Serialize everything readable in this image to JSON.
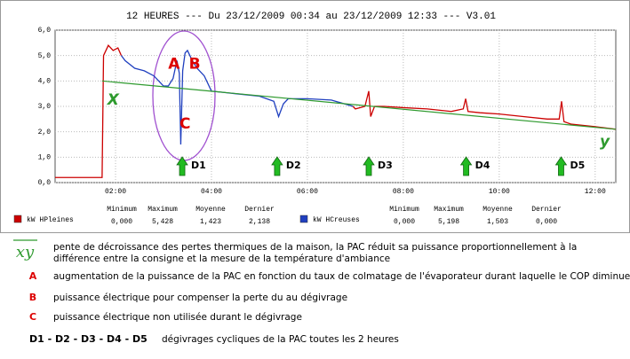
{
  "chart_data": {
    "type": "line",
    "title": "12 HEURES --- Du 23/12/2009 00:34 au 23/12/2009 12:33 --- V3.01",
    "xlim": [
      0.74,
      12.43
    ],
    "xticks": [
      {
        "value": 2,
        "label": "02:00"
      },
      {
        "value": 4,
        "label": "04:00"
      },
      {
        "value": 6,
        "label": "06:00"
      },
      {
        "value": 8,
        "label": "08:00"
      },
      {
        "value": 10,
        "label": "10:00"
      },
      {
        "value": 12,
        "label": "12:00"
      }
    ],
    "ylim": [
      0,
      6
    ],
    "yticks": [
      {
        "value": 0,
        "label": "0,0"
      },
      {
        "value": 1,
        "label": "1,0"
      },
      {
        "value": 2,
        "label": "2,0"
      },
      {
        "value": 3,
        "label": "3,0"
      },
      {
        "value": 4,
        "label": "4,0"
      },
      {
        "value": 5,
        "label": "5,0"
      },
      {
        "value": 6,
        "label": "6,0"
      }
    ],
    "grid": true,
    "stat_labels": [
      "Minimum",
      "Maximum",
      "Moyenne",
      "Dernier"
    ],
    "series": [
      {
        "name": "kW HPleines",
        "color": "#cc0000",
        "x": [
          0.74,
          1.2,
          1.72,
          1.75,
          1.85,
          1.95,
          2.05,
          2.12,
          4.5,
          6.95,
          7.0,
          7.2,
          7.28,
          7.32,
          7.4,
          7.6,
          8.0,
          8.5,
          9.0,
          9.25,
          9.3,
          9.35,
          9.6,
          10.0,
          10.5,
          11.0,
          11.25,
          11.3,
          11.35,
          11.5,
          12.0,
          12.43
        ],
        "values": [
          0.2,
          0.2,
          0.2,
          5.0,
          5.4,
          5.2,
          5.3,
          5.0,
          null,
          3.0,
          2.9,
          3.0,
          3.6,
          2.6,
          3.0,
          3.0,
          2.95,
          2.9,
          2.8,
          2.9,
          3.3,
          2.8,
          2.75,
          2.7,
          2.6,
          2.5,
          2.5,
          3.2,
          2.4,
          2.3,
          2.2,
          2.1
        ],
        "stats": [
          "0,000",
          "5,428",
          "1,423",
          "2,138"
        ]
      },
      {
        "name": "kW HCreuses",
        "color": "#1f3fbf",
        "x": [
          2.12,
          2.2,
          2.4,
          2.6,
          2.8,
          3.0,
          3.1,
          3.2,
          3.28,
          3.33,
          3.36,
          3.4,
          3.45,
          3.5,
          3.6,
          3.7,
          3.85,
          4.0,
          4.5,
          5.0,
          5.3,
          5.4,
          5.5,
          5.6,
          6.0,
          6.5,
          6.95
        ],
        "values": [
          5.0,
          4.8,
          4.5,
          4.4,
          4.2,
          3.8,
          3.8,
          4.1,
          4.8,
          4.3,
          1.5,
          4.4,
          5.1,
          5.2,
          4.8,
          4.5,
          4.2,
          3.6,
          3.5,
          3.4,
          3.2,
          2.6,
          3.1,
          3.3,
          3.3,
          3.25,
          3.0
        ],
        "stats": [
          "0,000",
          "5,198",
          "1,503",
          "0,000"
        ]
      }
    ],
    "trend": {
      "color": "#2e9a2e",
      "x": [
        1.72,
        12.43
      ],
      "values": [
        4.0,
        2.1
      ]
    },
    "annotations": [
      {
        "text": "A",
        "x": 3.22,
        "y": 4.65,
        "color": "#dd0000"
      },
      {
        "text": "B",
        "x": 3.65,
        "y": 4.65,
        "color": "#dd0000"
      },
      {
        "text": "C",
        "x": 3.45,
        "y": 2.3,
        "color": "#dd0000"
      },
      {
        "text": "X",
        "x": 1.95,
        "y": 3.25,
        "color": "#2e9a2e"
      },
      {
        "text": "y",
        "x": 12.2,
        "y": 1.6,
        "color": "#2e9a2e"
      }
    ],
    "defrosts": [
      {
        "label": "D1",
        "x": 3.39
      },
      {
        "label": "D2",
        "x": 5.37
      },
      {
        "label": "D3",
        "x": 7.28
      },
      {
        "label": "D4",
        "x": 9.31
      },
      {
        "label": "D5",
        "x": 11.29
      }
    ]
  },
  "notes": [
    {
      "key": "xy",
      "lines": [
        "pente de décroissance des pertes thermiques de la maison, la PAC réduit sa puissance proportionnellement à la",
        "différence entre la consigne et la mesure de la température d'ambiance"
      ]
    },
    {
      "key": "A",
      "lines": [
        "augmentation de la puissance de la PAC en fonction du taux de colmatage de l'évaporateur durant laquelle le COP diminue"
      ]
    },
    {
      "key": "B",
      "lines": [
        "puissance électrique pour compenser la perte du au dégivrage"
      ]
    },
    {
      "key": "C",
      "lines": [
        "puissance électrique non utilisée durant le dégivrage"
      ]
    },
    {
      "key": "D1 - D2 - D3 - D4 - D5",
      "lines": [
        "dégivrages cycliques de la PAC toutes les 2 heures"
      ]
    }
  ]
}
